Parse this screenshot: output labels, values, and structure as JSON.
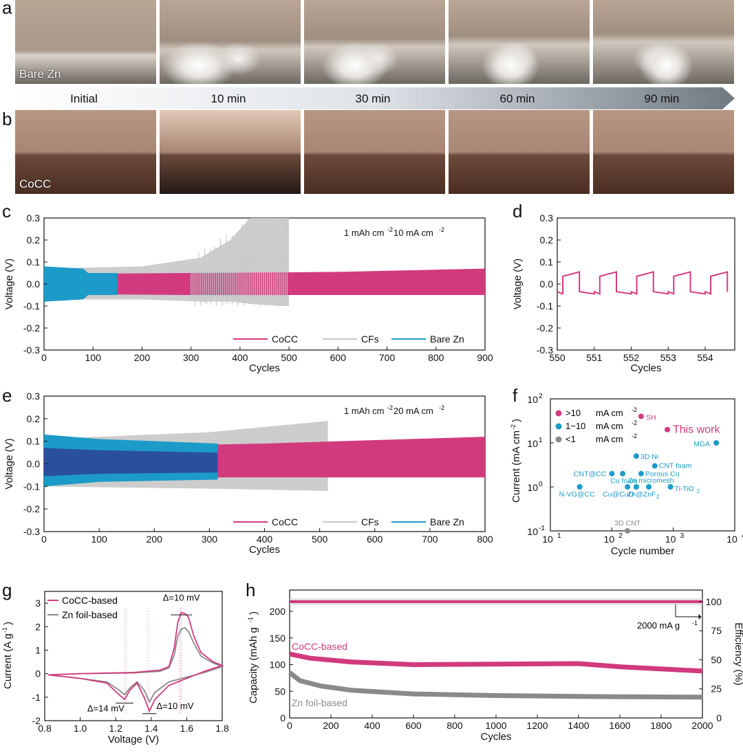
{
  "panels": {
    "a": "a",
    "b": "b",
    "c": "c",
    "d": "d",
    "e": "e",
    "f": "f",
    "g": "g",
    "h": "h"
  },
  "photos": {
    "a_label": "Bare Zn",
    "b_label": "CoCC",
    "times": [
      "Initial",
      "10 min",
      "30 min",
      "60 min",
      "90 min"
    ],
    "colors": {
      "a_top": "#b9a695",
      "a_bottom": "#6c6761",
      "b_top": "#b79784",
      "b_bottom": "#4a2e22"
    }
  },
  "colors": {
    "cocc": "#d23a7e",
    "cfs": "#c8c8c8",
    "bare": "#1c9bc8",
    "bare_dark": "#2a4f9c",
    "zn": "#8a8a8a",
    "axis": "#111111"
  },
  "chart_data": [
    {
      "panel": "c",
      "type": "line",
      "xlabel": "Cycles",
      "ylabel": "Voltage (V)",
      "xlim": [
        0,
        900
      ],
      "ylim": [
        -0.3,
        0.3
      ],
      "xticks": [
        0,
        100,
        200,
        300,
        400,
        500,
        600,
        700,
        800,
        900
      ],
      "yticks": [
        "-0.3",
        "-0.2",
        "-0.1",
        "0.0",
        "0.1",
        "0.2",
        "0.3"
      ],
      "condition_a": "1 mAh cm",
      "condition_b": "-2",
      "condition_c": "  10 mA cm",
      "condition_d": "-2",
      "series": [
        {
          "name": "CoCC",
          "cycles": [
            0,
            900
          ],
          "envelope": [
            [
              0,
              0.045,
              -0.045
            ],
            [
              300,
              0.05,
              -0.05
            ],
            [
              600,
              0.055,
              -0.05
            ],
            [
              900,
              0.07,
              -0.05
            ]
          ]
        },
        {
          "name": "CFs",
          "cycles": [
            0,
            500
          ],
          "envelope": [
            [
              0,
              0.07,
              -0.07
            ],
            [
              200,
              0.08,
              -0.07
            ],
            [
              320,
              0.12,
              -0.08
            ],
            [
              380,
              0.2,
              -0.08
            ],
            [
              420,
              0.3,
              -0.09
            ],
            [
              480,
              0.3,
              -0.1
            ],
            [
              500,
              0.3,
              -0.1
            ]
          ]
        },
        {
          "name": "Bare Zn",
          "cycles": [
            0,
            150
          ],
          "envelope": [
            [
              0,
              0.08,
              -0.08
            ],
            [
              80,
              0.07,
              -0.07
            ],
            [
              90,
              0.05,
              -0.05
            ],
            [
              150,
              0.05,
              -0.05
            ]
          ]
        }
      ]
    },
    {
      "panel": "d",
      "type": "line",
      "xlabel": "Cycles",
      "ylabel": "Voltage (V)",
      "xlim": [
        550,
        554.8
      ],
      "ylim": [
        -0.3,
        0.3
      ],
      "xticks": [
        550,
        551,
        552,
        553,
        554
      ],
      "yticks": [
        "-0.3",
        "-0.2",
        "-0.1",
        "0.0",
        "0.1",
        "0.2",
        "0.3"
      ],
      "series": [
        {
          "name": "CoCC",
          "period": 1,
          "high": [
            0.035,
            0.055
          ],
          "low": [
            -0.035,
            -0.045
          ]
        }
      ]
    },
    {
      "panel": "e",
      "type": "line",
      "xlabel": "Cycles",
      "ylabel": "Voltage (V)",
      "xlim": [
        0,
        800
      ],
      "ylim": [
        -0.3,
        0.3
      ],
      "xticks": [
        0,
        100,
        200,
        300,
        400,
        500,
        600,
        700,
        800
      ],
      "yticks": [
        "-0.3",
        "-0.2",
        "-0.1",
        "0.0",
        "0.1",
        "0.2",
        "0.3"
      ],
      "condition_a": "1 mAh cm",
      "condition_b": "-2",
      "condition_c": "  20 mA cm",
      "condition_d": "-2",
      "series": [
        {
          "name": "CoCC",
          "cycles": [
            0,
            800
          ],
          "envelope": [
            [
              0,
              0.07,
              -0.06
            ],
            [
              400,
              0.09,
              -0.06
            ],
            [
              800,
              0.12,
              -0.06
            ]
          ]
        },
        {
          "name": "CFs",
          "cycles": [
            0,
            515
          ],
          "envelope": [
            [
              0,
              0.11,
              -0.1
            ],
            [
              300,
              0.14,
              -0.11
            ],
            [
              515,
              0.19,
              -0.12
            ]
          ]
        },
        {
          "name": "Bare Zn",
          "cycles": [
            0,
            315
          ],
          "envelope": [
            [
              0,
              0.13,
              -0.1
            ],
            [
              100,
              0.11,
              -0.08
            ],
            [
              315,
              0.09,
              -0.07
            ]
          ]
        }
      ]
    },
    {
      "panel": "f",
      "type": "scatter",
      "xlabel": "Cycle number",
      "ylabel": "Current (mA cm",
      "ylabel_sup": "-2",
      "ylabel_end": ")",
      "xscale": "log",
      "yscale": "log",
      "xlim": [
        10,
        10000
      ],
      "ylim": [
        0.1,
        100
      ],
      "xticks_base": [
        "10",
        "10",
        "10",
        "10"
      ],
      "xticks_exp": [
        "1",
        "2",
        "3",
        "4"
      ],
      "yticks_base": [
        "10",
        "10",
        "10",
        "10"
      ],
      "yticks_exp": [
        "-1",
        "0",
        "1",
        "2"
      ],
      "legend": [
        {
          "label": ">10",
          "unit": "mA cm",
          "sup": "-2",
          "color": "#d23a7e"
        },
        {
          "label": "1−10",
          "unit": "mA cm",
          "sup": "-2",
          "color": "#1c9bc8"
        },
        {
          "label": "<1",
          "unit": "mA cm",
          "sup": "-2",
          "color": "#8a8a8a"
        }
      ],
      "points": [
        {
          "label": "SH",
          "x": 300,
          "y": 40,
          "group": 0
        },
        {
          "label": "This work",
          "x": 800,
          "y": 20,
          "group": 0,
          "big": true
        },
        {
          "label": "MGA",
          "x": 5000,
          "y": 10,
          "group": 1
        },
        {
          "label": "3D Ni",
          "x": 250,
          "y": 5,
          "group": 1
        },
        {
          "label": "CNT foam",
          "x": 500,
          "y": 3,
          "group": 1
        },
        {
          "label": "CNT@CC",
          "x": 100,
          "y": 2,
          "group": 1
        },
        {
          "label": "Cu foam",
          "x": 150,
          "y": 2,
          "group": 1
        },
        {
          "label": "Porous Cu",
          "x": 300,
          "y": 2,
          "group": 1
        },
        {
          "label": "Zn micromesh",
          "x": 400,
          "y": 1,
          "group": 1
        },
        {
          "label": "N-VG@CC",
          "x": 30,
          "y": 1,
          "group": 1
        },
        {
          "label": "Cu@CuO",
          "x": 180,
          "y": 1,
          "group": 1
        },
        {
          "label": "Zn@ZnF",
          "x": 250,
          "y": 1,
          "group": 1
        },
        {
          "label": "Ti-TiO",
          "x": 900,
          "y": 1,
          "group": 1
        },
        {
          "label": "3D CNT",
          "x": 180,
          "y": 0.1,
          "group": 2
        }
      ],
      "label_extra": {
        "sub2": "2"
      }
    },
    {
      "panel": "g",
      "type": "line",
      "xlabel": "Voltage (V)",
      "ylabel": "Current (A g",
      "ylabel_sup": "-1",
      "ylabel_end": ")",
      "xlim": [
        0.8,
        1.8
      ],
      "ylim": [
        -2,
        3.5
      ],
      "xticks": [
        "0.8",
        "1.0",
        "1.2",
        "1.4",
        "1.6",
        "1.8"
      ],
      "yticks": [
        "-2",
        "-1",
        "0",
        "1",
        "2",
        "3"
      ],
      "legend": [
        "CoCC-based",
        "Zn foil-based"
      ],
      "annotations": [
        "Δ=10 mV",
        "Δ=14 mV",
        "Δ=10 mV"
      ],
      "series": [
        {
          "name": "CoCC-based",
          "points": [
            [
              0.82,
              -0.05
            ],
            [
              1.0,
              -0.2
            ],
            [
              1.15,
              -0.4
            ],
            [
              1.22,
              -0.9
            ],
            [
              1.25,
              -1.1
            ],
            [
              1.28,
              -0.7
            ],
            [
              1.32,
              -0.4
            ],
            [
              1.36,
              -1.0
            ],
            [
              1.39,
              -1.6
            ],
            [
              1.42,
              -1.1
            ],
            [
              1.5,
              -0.5
            ],
            [
              1.6,
              -0.2
            ],
            [
              1.7,
              0.1
            ],
            [
              1.8,
              0.35
            ],
            [
              1.75,
              0.5
            ],
            [
              1.68,
              0.9
            ],
            [
              1.64,
              1.6
            ],
            [
              1.61,
              2.4
            ],
            [
              1.59,
              2.55
            ],
            [
              1.57,
              2.6
            ],
            [
              1.55,
              2.2
            ],
            [
              1.53,
              1.1
            ],
            [
              1.5,
              0.3
            ],
            [
              1.45,
              0.15
            ],
            [
              1.3,
              0.05
            ],
            [
              1.0,
              0.0
            ],
            [
              0.82,
              -0.05
            ]
          ]
        },
        {
          "name": "Zn foil-based",
          "points": [
            [
              0.82,
              -0.05
            ],
            [
              1.0,
              -0.2
            ],
            [
              1.15,
              -0.35
            ],
            [
              1.22,
              -0.7
            ],
            [
              1.25,
              -0.9
            ],
            [
              1.28,
              -0.6
            ],
            [
              1.32,
              -0.35
            ],
            [
              1.36,
              -0.7
            ],
            [
              1.39,
              -1.2
            ],
            [
              1.42,
              -0.8
            ],
            [
              1.5,
              -0.35
            ],
            [
              1.6,
              -0.15
            ],
            [
              1.7,
              0.05
            ],
            [
              1.8,
              0.3
            ],
            [
              1.75,
              0.45
            ],
            [
              1.68,
              0.75
            ],
            [
              1.64,
              1.3
            ],
            [
              1.61,
              1.8
            ],
            [
              1.59,
              1.95
            ],
            [
              1.57,
              1.9
            ],
            [
              1.55,
              1.6
            ],
            [
              1.53,
              0.8
            ],
            [
              1.5,
              0.25
            ],
            [
              1.45,
              0.1
            ],
            [
              1.3,
              0.03
            ],
            [
              1.0,
              0.0
            ],
            [
              0.82,
              -0.05
            ]
          ]
        }
      ]
    },
    {
      "panel": "h",
      "type": "line",
      "xlabel": "Cycles",
      "ylabel": "Capacity (mAh g",
      "ylabel_sup": "-1",
      "ylabel_end": ")",
      "y2label": "Efficiency (%)",
      "xlim": [
        0,
        2000
      ],
      "ylim": [
        0,
        240
      ],
      "y2lim": [
        0,
        110
      ],
      "xticks": [
        "0",
        "200",
        "400",
        "600",
        "800",
        "1000",
        "1200",
        "1400",
        "1600",
        "1800",
        "2000"
      ],
      "yticks": [
        "0",
        "50",
        "100",
        "150",
        "200"
      ],
      "y2ticks": [
        "0",
        "25",
        "50",
        "75",
        "100"
      ],
      "rate_a": "2000 mA g",
      "rate_b": "-1",
      "series": [
        {
          "name": "CoCC-based",
          "points": [
            [
              0,
              120
            ],
            [
              100,
              112
            ],
            [
              300,
              105
            ],
            [
              600,
              100
            ],
            [
              1000,
              101
            ],
            [
              1400,
              102
            ],
            [
              1600,
              96
            ],
            [
              1800,
              92
            ],
            [
              2000,
              88
            ]
          ]
        },
        {
          "name": "Zn foil-based",
          "points": [
            [
              0,
              85
            ],
            [
              50,
              70
            ],
            [
              150,
              60
            ],
            [
              300,
              52
            ],
            [
              600,
              45
            ],
            [
              1000,
              42
            ],
            [
              1500,
              40
            ],
            [
              2000,
              39
            ]
          ]
        },
        {
          "name": "efficiency",
          "value": 100
        }
      ]
    }
  ]
}
